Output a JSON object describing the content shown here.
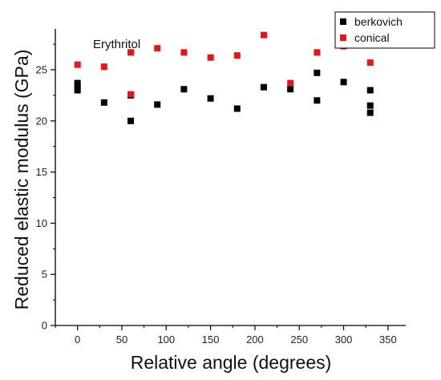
{
  "chart_data": {
    "type": "scatter",
    "annotation": "Erythritol",
    "xlabel": "Relative angle (degrees)",
    "ylabel": "Reduced elastic modulus (GPa)",
    "xlim": [
      -25,
      370
    ],
    "ylim": [
      0,
      29
    ],
    "xticks": [
      0,
      50,
      100,
      150,
      200,
      250,
      300,
      350
    ],
    "yticks": [
      0,
      5,
      10,
      15,
      20,
      25
    ],
    "legend_position": "top-right",
    "series": [
      {
        "name": "berkovich",
        "color": "#000000",
        "marker": "square",
        "points": [
          [
            0,
            23.7
          ],
          [
            0,
            23.3
          ],
          [
            0,
            23.0
          ],
          [
            30,
            21.8
          ],
          [
            60,
            22.5
          ],
          [
            60,
            20.0
          ],
          [
            90,
            21.6
          ],
          [
            120,
            23.1
          ],
          [
            150,
            22.2
          ],
          [
            180,
            21.2
          ],
          [
            210,
            23.3
          ],
          [
            240,
            23.1
          ],
          [
            270,
            24.7
          ],
          [
            270,
            22.0
          ],
          [
            300,
            23.8
          ],
          [
            330,
            23.0
          ],
          [
            330,
            21.5
          ],
          [
            330,
            20.8
          ]
        ]
      },
      {
        "name": "conical",
        "color": "#e8141b",
        "marker": "square",
        "points": [
          [
            0,
            25.5
          ],
          [
            30,
            25.3
          ],
          [
            60,
            26.7
          ],
          [
            60,
            22.6
          ],
          [
            90,
            27.1
          ],
          [
            120,
            26.7
          ],
          [
            150,
            26.2
          ],
          [
            180,
            26.4
          ],
          [
            210,
            28.4
          ],
          [
            240,
            23.7
          ],
          [
            270,
            26.7
          ],
          [
            300,
            27.3
          ],
          [
            330,
            25.7
          ]
        ]
      }
    ]
  }
}
